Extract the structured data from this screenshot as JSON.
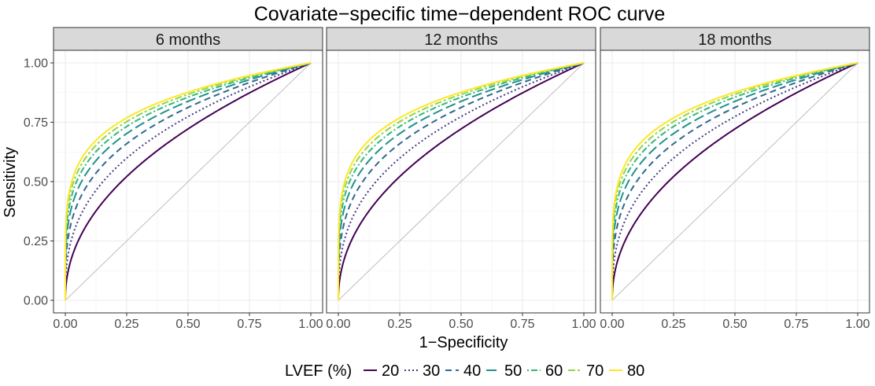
{
  "chart_data": {
    "type": "line",
    "title": "Covariate−specific time−dependent ROC curve",
    "xlabel": "1−Specificity",
    "ylabel": "Sensitivity",
    "xlim": [
      0,
      1
    ],
    "ylim": [
      0,
      1
    ],
    "x_ticks": [
      "0.00",
      "0.25",
      "0.50",
      "0.75",
      "1.00"
    ],
    "y_ticks": [
      "0.00",
      "0.25",
      "0.50",
      "0.75",
      "1.00"
    ],
    "grid": true,
    "reference_line": {
      "from": [
        0,
        0
      ],
      "to": [
        1,
        1
      ],
      "color": "#bebebe"
    },
    "legend": {
      "title": "LVEF (%)",
      "position": "bottom"
    },
    "series": [
      {
        "name": "20",
        "color": "#440154",
        "dash": "solid",
        "curve_power": 0.47
      },
      {
        "name": "30",
        "color": "#443983",
        "dash": "dotted",
        "curve_power": 0.37
      },
      {
        "name": "40",
        "color": "#31688e",
        "dash": "dashed",
        "curve_power": 0.3
      },
      {
        "name": "50",
        "color": "#21918c",
        "dash": "longdash",
        "curve_power": 0.255
      },
      {
        "name": "60",
        "color": "#35b779",
        "dash": "dotdash",
        "curve_power": 0.225
      },
      {
        "name": "70",
        "color": "#90d743",
        "dash": "twodash",
        "curve_power": 0.205
      },
      {
        "name": "80",
        "color": "#fde725",
        "dash": "solid",
        "curve_power": 0.19
      }
    ],
    "panels": [
      {
        "label": "6 months"
      },
      {
        "label": "12 months"
      },
      {
        "label": "18 months"
      }
    ]
  }
}
